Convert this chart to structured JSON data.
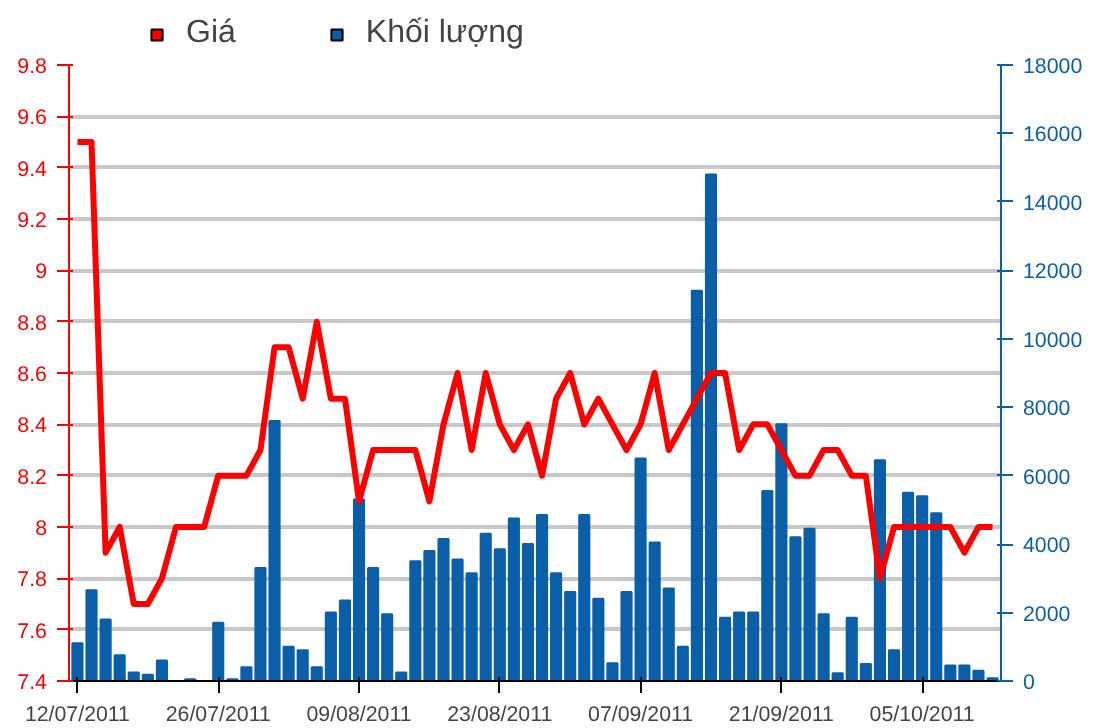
{
  "chart_data": {
    "type": "bar",
    "categories": [
      "12/07/2011",
      null,
      null,
      null,
      null,
      null,
      null,
      null,
      null,
      null,
      "26/07/2011",
      null,
      null,
      null,
      null,
      null,
      null,
      null,
      null,
      null,
      "09/08/2011",
      null,
      null,
      null,
      null,
      null,
      null,
      null,
      null,
      null,
      "23/08/2011",
      null,
      null,
      null,
      null,
      null,
      null,
      null,
      null,
      null,
      "07/09/2011",
      null,
      null,
      null,
      null,
      null,
      null,
      null,
      null,
      null,
      "21/09/2011",
      null,
      null,
      null,
      null,
      null,
      null,
      null,
      null,
      null,
      "05/10/2011",
      null,
      null,
      null,
      null,
      null
    ],
    "series": [
      {
        "name": "Giá",
        "type": "line",
        "color": "#ff0000",
        "values": [
          9.5,
          9.5,
          7.9,
          8.0,
          7.7,
          7.7,
          7.8,
          8.0,
          8.0,
          8.0,
          8.2,
          8.2,
          8.2,
          8.3,
          8.7,
          8.7,
          8.5,
          8.8,
          8.5,
          8.5,
          8.1,
          8.3,
          8.3,
          8.3,
          8.3,
          8.1,
          8.4,
          8.6,
          8.3,
          8.6,
          8.4,
          8.3,
          8.4,
          8.2,
          8.5,
          8.6,
          8.4,
          8.5,
          8.4,
          8.3,
          8.4,
          8.6,
          8.3,
          8.4,
          8.5,
          8.6,
          8.6,
          8.3,
          8.4,
          8.4,
          8.3,
          8.2,
          8.2,
          8.3,
          8.3,
          8.2,
          8.2,
          7.8,
          8.0,
          8.0,
          8.0,
          8.0,
          8.0,
          7.9,
          8.0,
          8.0
        ]
      },
      {
        "name": "Khối lượng",
        "axis": "y2",
        "color": "#0a5fa8",
        "values": [
          1100,
          2650,
          1800,
          750,
          250,
          180,
          600,
          0,
          50,
          0,
          1700,
          50,
          400,
          3300,
          7600,
          1000,
          900,
          400,
          2000,
          2350,
          5300,
          3300,
          1950,
          250,
          3500,
          3800,
          4150,
          3550,
          3150,
          4300,
          3850,
          4750,
          4000,
          4850,
          3150,
          2600,
          4850,
          2400,
          520,
          2600,
          6500,
          4050,
          2700,
          1000,
          11400,
          14800,
          1850,
          2000,
          2000,
          5550,
          7500,
          4200,
          4450,
          1950,
          230,
          1850,
          500,
          6450,
          900,
          5500,
          5400,
          4900,
          450,
          450,
          300,
          80
        ]
      }
    ],
    "ylim": [
      7.4,
      9.8
    ],
    "yticks": [
      7.4,
      7.6,
      7.8,
      8,
      8.2,
      8.4,
      8.6,
      8.8,
      9,
      9.2,
      9.4,
      9.6,
      9.8
    ],
    "y2lim": [
      0,
      18000
    ],
    "y2ticks": [
      0,
      2000,
      4000,
      6000,
      8000,
      10000,
      12000,
      14000,
      16000,
      18000
    ],
    "grid": "y",
    "legend": "top left"
  }
}
